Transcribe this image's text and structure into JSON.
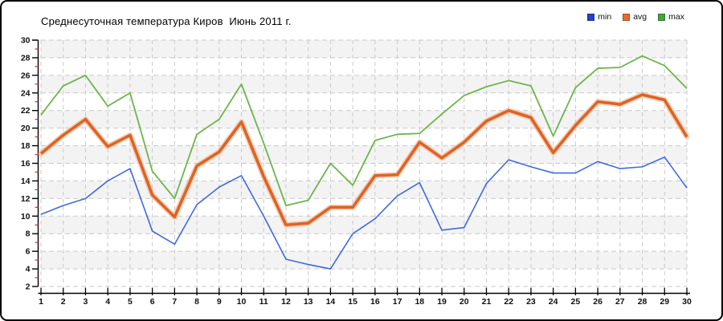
{
  "title": "Среднесуточная температура Киров  Июнь 2011 г.",
  "legend": [
    {
      "label": "min",
      "color": "#2340cf"
    },
    {
      "label": "avg",
      "color": "#e8692e"
    },
    {
      "label": "max",
      "color": "#3fa73c"
    }
  ],
  "chart_data": {
    "type": "line",
    "title": "Среднесуточная температура Киров  Июнь 2011 г.",
    "xlabel": "",
    "ylabel": "",
    "x": [
      1,
      2,
      3,
      4,
      5,
      6,
      7,
      8,
      9,
      10,
      11,
      12,
      13,
      14,
      15,
      16,
      17,
      18,
      19,
      20,
      21,
      22,
      23,
      24,
      25,
      26,
      27,
      28,
      29,
      30
    ],
    "ylim": [
      2,
      30
    ],
    "ytick_step": 2,
    "grid": true,
    "legend_position": "top-right",
    "series": [
      {
        "name": "min",
        "color": "#4169e1",
        "stroke_width": 1.6,
        "values": [
          10.2,
          11.2,
          12.0,
          14.0,
          15.4,
          8.3,
          6.8,
          11.3,
          13.3,
          14.6,
          10.0,
          5.1,
          4.5,
          4.0,
          8.0,
          9.7,
          12.3,
          13.8,
          8.4,
          8.7,
          13.7,
          16.4,
          15.6,
          14.9,
          14.9,
          16.2,
          15.4,
          15.6,
          16.7,
          13.2
        ]
      },
      {
        "name": "avg",
        "color": "#dd6327",
        "halo_color": "#f4b488",
        "stroke_width": 3.6,
        "values": [
          17.1,
          19.2,
          21.0,
          17.9,
          19.2,
          12.4,
          9.9,
          15.7,
          17.3,
          20.7,
          14.5,
          9.0,
          9.2,
          11.0,
          11.0,
          14.6,
          14.7,
          18.4,
          16.6,
          18.4,
          20.8,
          22.0,
          21.2,
          17.2,
          20.3,
          23.0,
          22.7,
          23.8,
          23.2,
          19.0
        ]
      },
      {
        "name": "max",
        "color": "#6fb44a",
        "stroke_width": 1.8,
        "values": [
          21.5,
          24.8,
          26.0,
          22.5,
          24.0,
          15.1,
          12.0,
          19.3,
          21.0,
          25.0,
          18.3,
          11.2,
          11.8,
          16.0,
          13.5,
          18.6,
          19.3,
          19.4,
          21.6,
          23.7,
          24.7,
          25.4,
          24.8,
          19.1,
          24.6,
          26.8,
          26.9,
          28.2,
          27.1,
          24.5
        ]
      }
    ],
    "styles": {
      "band_gray": "#f3f3f3",
      "band_white": "#ffffff",
      "grid_color": "#c9c9c9",
      "axis_color": "#000000",
      "minor_tick_color": "#d03030",
      "tick_label_color": "#111111"
    }
  }
}
